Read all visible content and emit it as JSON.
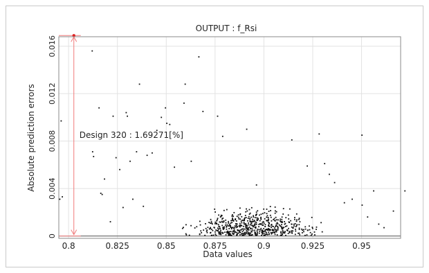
{
  "chart_data": {
    "type": "scatter",
    "title": "OUTPUT : f_Rsi",
    "xlabel": "Data values",
    "ylabel": "Absolute prediction errors",
    "xlim": [
      0.795,
      0.97
    ],
    "ylim": [
      -0.0002,
      0.0168
    ],
    "xticks": [
      0.8,
      0.825,
      0.85,
      0.875,
      0.9,
      0.925,
      0.95
    ],
    "xtick_labels": [
      "0.8",
      "0.825",
      "0.85",
      "0.875",
      "0.9",
      "0.925",
      "0.95"
    ],
    "yticks": [
      0,
      0.004,
      0.008,
      0.012,
      0.016
    ],
    "ytick_labels": [
      "0",
      "0.004",
      "0.008",
      "0.012",
      "0.016"
    ],
    "grid": true,
    "annotation": {
      "text": "Design 320 : 1.69271[%]",
      "x": 0.8027,
      "y": 0.0169
    },
    "highlight_point": {
      "x": 0.8027,
      "y": 0.0169
    },
    "points": [
      [
        0.7955,
        0.0031
      ],
      [
        0.7962,
        0.0097
      ],
      [
        0.7968,
        0.0033
      ],
      [
        0.8121,
        0.0156
      ],
      [
        0.8123,
        0.0071
      ],
      [
        0.8128,
        0.0067
      ],
      [
        0.8156,
        0.0108
      ],
      [
        0.8165,
        0.0036
      ],
      [
        0.8172,
        0.0035
      ],
      [
        0.8184,
        0.0048
      ],
      [
        0.8214,
        0.0012
      ],
      [
        0.8228,
        0.0101
      ],
      [
        0.8243,
        0.0066
      ],
      [
        0.8262,
        0.0056
      ],
      [
        0.8279,
        0.0024
      ],
      [
        0.8295,
        0.0104
      ],
      [
        0.8301,
        0.0101
      ],
      [
        0.8315,
        0.0063
      ],
      [
        0.8329,
        0.0031
      ],
      [
        0.8348,
        0.0071
      ],
      [
        0.8363,
        0.0128
      ],
      [
        0.8383,
        0.0025
      ],
      [
        0.8402,
        0.0068
      ],
      [
        0.8428,
        0.007
      ],
      [
        0.8452,
        0.0089
      ],
      [
        0.8475,
        0.01
      ],
      [
        0.8496,
        0.0108
      ],
      [
        0.8503,
        0.0095
      ],
      [
        0.8518,
        0.0094
      ],
      [
        0.8542,
        0.0058
      ],
      [
        0.8591,
        0.0112
      ],
      [
        0.8597,
        0.0128
      ],
      [
        0.8628,
        0.0063
      ],
      [
        0.8667,
        0.0151
      ],
      [
        0.8688,
        0.0105
      ],
      [
        0.8763,
        0.0101
      ],
      [
        0.8789,
        0.0084
      ],
      [
        0.8912,
        0.009
      ],
      [
        0.8962,
        0.0043
      ],
      [
        0.9143,
        0.0081
      ],
      [
        0.9222,
        0.0059
      ],
      [
        0.9283,
        0.0086
      ],
      [
        0.9311,
        0.0061
      ],
      [
        0.9335,
        0.0052
      ],
      [
        0.9362,
        0.0045
      ],
      [
        0.9412,
        0.0028
      ],
      [
        0.9452,
        0.0031
      ],
      [
        0.9502,
        0.0085
      ],
      [
        0.9503,
        0.0026
      ],
      [
        0.9562,
        0.0038
      ],
      [
        0.9663,
        0.0021
      ],
      [
        0.9722,
        0.0038
      ],
      [
        0.9588,
        0.001
      ],
      [
        0.9615,
        0.0007
      ],
      [
        0.9531,
        0.0016
      ]
    ]
  }
}
